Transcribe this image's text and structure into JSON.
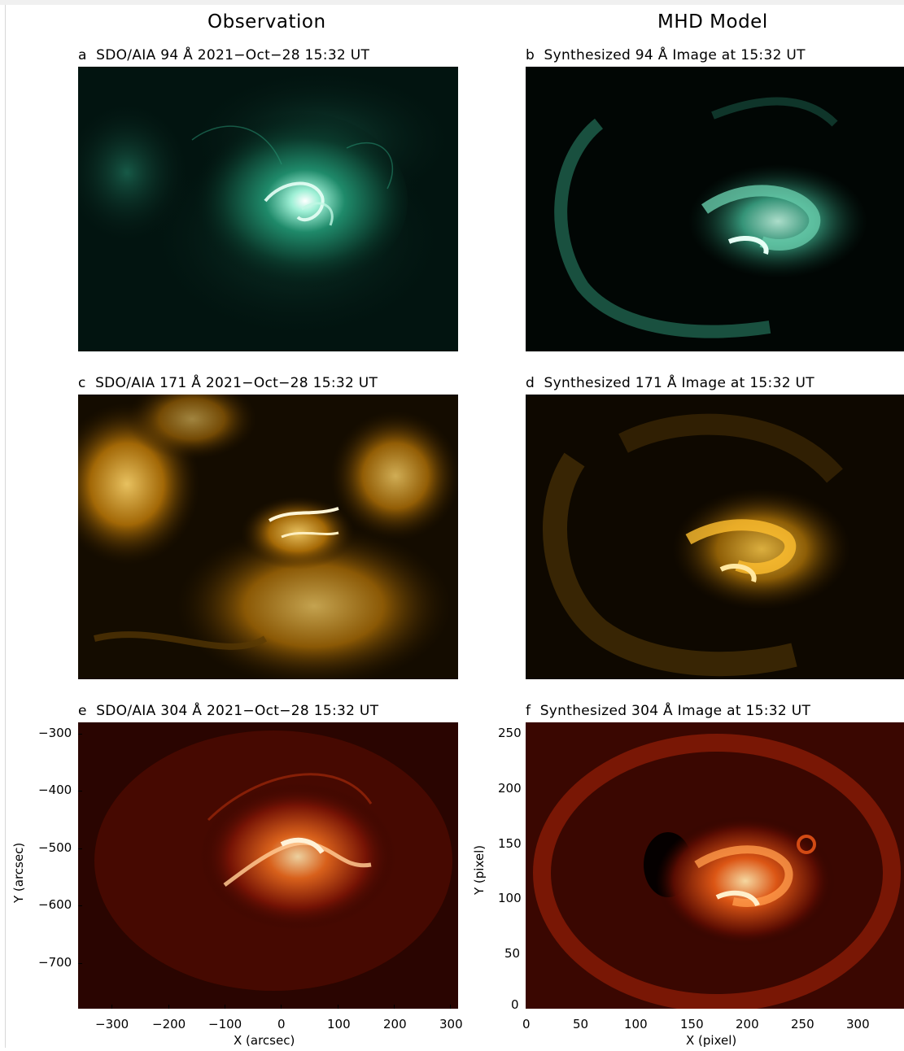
{
  "headers": {
    "left": "Observation",
    "right": "MHD Model"
  },
  "panels": [
    {
      "id": "a",
      "letter": "a",
      "title": "SDO/AIA 94 Å  2021−Oct−28  15:32  UT",
      "color": "#35c9a0"
    },
    {
      "id": "b",
      "letter": "b",
      "title": "Synthesized 94 Å  Image at 15:32 UT",
      "color": "#35c9a0"
    },
    {
      "id": "c",
      "letter": "c",
      "title": "SDO/AIA 171 Å  2021−Oct−28  15:32  UT",
      "color": "#f0a81c"
    },
    {
      "id": "d",
      "letter": "d",
      "title": "Synthesized 171 Å  Image at 15:32 UT",
      "color": "#f0a81c"
    },
    {
      "id": "e",
      "letter": "e",
      "title": "SDO/AIA 304 Å  2021−Oct−28  15:32  UT",
      "color": "#e0451a"
    },
    {
      "id": "f",
      "letter": "f",
      "title": "Synthesized 304 Å  Image at 15:32 UT",
      "color": "#e0451a"
    }
  ],
  "axes": {
    "obs_x_label": "X (arcsec)",
    "obs_y_label": "Y (arcsec)",
    "obs_x_ticks": [
      "−300",
      "−200",
      "−100",
      "0",
      "100",
      "200",
      "300"
    ],
    "obs_y_ticks": [
      "−300",
      "−400",
      "−500",
      "−600",
      "−700"
    ],
    "model_x_label": "X (pixel)",
    "model_y_label": "Y (pixel)",
    "model_x_ticks": [
      "0",
      "50",
      "100",
      "150",
      "200",
      "250",
      "300"
    ],
    "model_y_ticks": [
      "250",
      "200",
      "150",
      "100",
      "50",
      "0"
    ]
  }
}
